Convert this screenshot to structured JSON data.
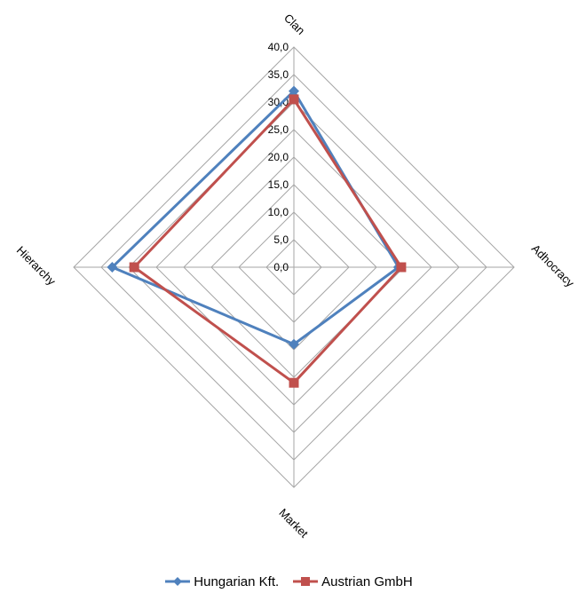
{
  "chart_data": {
    "type": "radar",
    "axes": [
      "Clan",
      "Adhocracy",
      "Market",
      "Hierarchy"
    ],
    "tick_labels": [
      "0,0",
      "5,0",
      "10,0",
      "15,0",
      "20,0",
      "25,0",
      "30,0",
      "35,0",
      "40,0"
    ],
    "rlim": [
      0,
      40
    ],
    "tick_step": 5,
    "grid": true,
    "legend_position": "bottom",
    "series": [
      {
        "name": "Hungarian Kft.",
        "values": [
          32.0,
          19.0,
          14.0,
          33.0
        ],
        "color": "#4f81bd",
        "marker": "diamond"
      },
      {
        "name": "Austrian GmbH",
        "values": [
          30.5,
          19.5,
          21.0,
          29.0
        ],
        "color": "#c0504d",
        "marker": "square"
      }
    ]
  }
}
